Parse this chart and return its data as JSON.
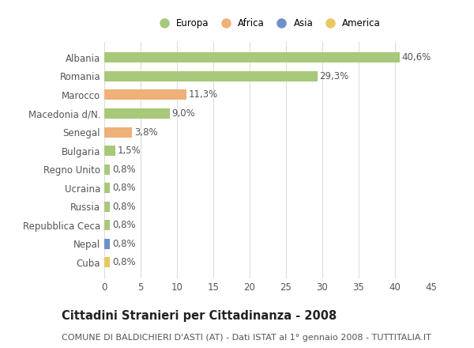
{
  "countries": [
    "Albania",
    "Romania",
    "Marocco",
    "Macedonia d/N.",
    "Senegal",
    "Bulgaria",
    "Regno Unito",
    "Ucraina",
    "Russia",
    "Repubblica Ceca",
    "Nepal",
    "Cuba"
  ],
  "values": [
    40.6,
    29.3,
    11.3,
    9.0,
    3.8,
    1.5,
    0.8,
    0.8,
    0.8,
    0.8,
    0.8,
    0.8
  ],
  "labels": [
    "40,6%",
    "29,3%",
    "11,3%",
    "9,0%",
    "3,8%",
    "1,5%",
    "0,8%",
    "0,8%",
    "0,8%",
    "0,8%",
    "0,8%",
    "0,8%"
  ],
  "colors": [
    "#a8c87a",
    "#a8c87a",
    "#f0b07a",
    "#a8c87a",
    "#f0b07a",
    "#a8c87a",
    "#a8c87a",
    "#a8c87a",
    "#a8c87a",
    "#a8c87a",
    "#7090c8",
    "#e8c860"
  ],
  "legend_labels": [
    "Europa",
    "Africa",
    "Asia",
    "America"
  ],
  "legend_colors": [
    "#a8c87a",
    "#f0b07a",
    "#7090c8",
    "#e8c860"
  ],
  "xlim": [
    0,
    45
  ],
  "xticks": [
    0,
    5,
    10,
    15,
    20,
    25,
    30,
    35,
    40,
    45
  ],
  "title": "Cittadini Stranieri per Cittadinanza - 2008",
  "subtitle": "COMUNE DI BALDICHIERI D'ASTI (AT) - Dati ISTAT al 1° gennaio 2008 - TUTTITALIA.IT",
  "background_color": "#ffffff",
  "grid_color": "#dddddd",
  "bar_height": 0.55,
  "label_fontsize": 8.5,
  "tick_fontsize": 8.5,
  "title_fontsize": 10.5,
  "subtitle_fontsize": 8.0
}
